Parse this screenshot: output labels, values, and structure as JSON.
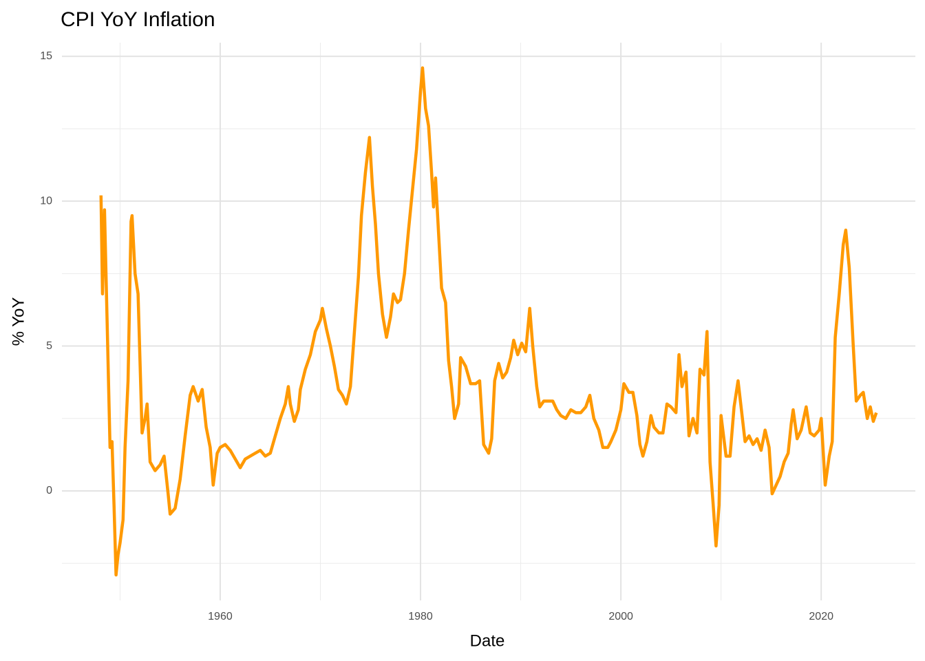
{
  "chart_data": {
    "type": "line",
    "title": "CPI YoY Inflation",
    "x_label": "Date",
    "y_label": "% YoY",
    "x": [
      1948.1,
      1948.25,
      1948.45,
      1948.7,
      1949.0,
      1949.2,
      1949.4,
      1949.6,
      1949.8,
      1950.0,
      1950.3,
      1950.5,
      1950.8,
      1951.1,
      1951.2,
      1951.5,
      1951.8,
      1952.2,
      1952.5,
      1952.7,
      1953.0,
      1953.5,
      1954.0,
      1954.4,
      1954.8,
      1955.0,
      1955.5,
      1956.0,
      1956.5,
      1957.0,
      1957.3,
      1957.8,
      1958.2,
      1958.6,
      1959.0,
      1959.3,
      1959.7,
      1960.0,
      1960.5,
      1961.0,
      1961.5,
      1962.0,
      1962.5,
      1963.0,
      1963.5,
      1964.0,
      1964.5,
      1965.0,
      1965.5,
      1966.0,
      1966.5,
      1966.8,
      1967.0,
      1967.4,
      1967.8,
      1968.0,
      1968.5,
      1969.0,
      1969.5,
      1970.0,
      1970.2,
      1970.6,
      1971.0,
      1971.4,
      1971.8,
      1972.2,
      1972.6,
      1973.0,
      1973.4,
      1973.8,
      1974.1,
      1974.5,
      1974.9,
      1975.2,
      1975.5,
      1975.8,
      1976.2,
      1976.6,
      1977.0,
      1977.3,
      1977.7,
      1978.0,
      1978.4,
      1978.8,
      1979.2,
      1979.6,
      1980.0,
      1980.2,
      1980.5,
      1980.8,
      1981.1,
      1981.3,
      1981.5,
      1981.8,
      1982.1,
      1982.5,
      1982.8,
      1983.1,
      1983.4,
      1983.8,
      1984.0,
      1984.5,
      1985.0,
      1985.5,
      1985.9,
      1986.3,
      1986.8,
      1987.1,
      1987.4,
      1987.8,
      1988.2,
      1988.6,
      1989.0,
      1989.3,
      1989.7,
      1990.1,
      1990.5,
      1990.9,
      1991.2,
      1991.6,
      1991.9,
      1992.3,
      1992.8,
      1993.2,
      1993.6,
      1994.0,
      1994.5,
      1995.0,
      1995.5,
      1996.0,
      1996.5,
      1996.9,
      1997.3,
      1997.8,
      1998.2,
      1998.7,
      1999.0,
      1999.5,
      2000.0,
      2000.3,
      2000.8,
      2001.2,
      2001.6,
      2001.9,
      2002.2,
      2002.6,
      2003.0,
      2003.3,
      2003.8,
      2004.2,
      2004.6,
      2005.0,
      2005.5,
      2005.8,
      2006.1,
      2006.5,
      2006.8,
      2007.2,
      2007.6,
      2007.9,
      2008.3,
      2008.6,
      2008.9,
      2009.2,
      2009.5,
      2009.8,
      2010.0,
      2010.5,
      2010.9,
      2011.3,
      2011.7,
      2012.0,
      2012.4,
      2012.8,
      2013.2,
      2013.6,
      2014.0,
      2014.4,
      2014.8,
      2015.1,
      2015.5,
      2015.9,
      2016.3,
      2016.7,
      2017.0,
      2017.2,
      2017.6,
      2018.0,
      2018.5,
      2018.9,
      2019.3,
      2019.8,
      2020.0,
      2020.4,
      2020.8,
      2021.1,
      2021.4,
      2021.8,
      2022.2,
      2022.45,
      2022.8,
      2023.2,
      2023.5,
      2023.9,
      2024.2,
      2024.6,
      2024.9,
      2025.2,
      2025.5
    ],
    "series": [
      {
        "color": "#ff9900",
        "values": [
          10.2,
          6.8,
          9.7,
          6.0,
          1.5,
          1.7,
          -0.5,
          -2.9,
          -2.2,
          -1.8,
          -1.0,
          1.5,
          3.8,
          9.3,
          9.5,
          7.5,
          6.8,
          2.0,
          2.5,
          3.0,
          1.0,
          0.7,
          0.9,
          1.2,
          -0.1,
          -0.8,
          -0.6,
          0.4,
          1.9,
          3.3,
          3.6,
          3.1,
          3.5,
          2.2,
          1.5,
          0.2,
          1.3,
          1.5,
          1.6,
          1.4,
          1.1,
          0.8,
          1.1,
          1.2,
          1.3,
          1.4,
          1.2,
          1.3,
          1.9,
          2.5,
          3.0,
          3.6,
          3.0,
          2.4,
          2.8,
          3.5,
          4.2,
          4.7,
          5.5,
          5.9,
          6.3,
          5.6,
          5.0,
          4.3,
          3.5,
          3.3,
          3.0,
          3.6,
          5.5,
          7.4,
          9.5,
          11.0,
          12.2,
          10.5,
          9.2,
          7.5,
          6.1,
          5.3,
          6.0,
          6.8,
          6.5,
          6.6,
          7.5,
          9.0,
          10.4,
          11.8,
          13.8,
          14.6,
          13.2,
          12.6,
          11.0,
          9.8,
          10.8,
          8.9,
          7.0,
          6.5,
          4.5,
          3.6,
          2.5,
          3.0,
          4.6,
          4.3,
          3.7,
          3.7,
          3.8,
          1.6,
          1.3,
          1.8,
          3.8,
          4.4,
          3.9,
          4.1,
          4.6,
          5.2,
          4.7,
          5.1,
          4.8,
          6.3,
          5.0,
          3.6,
          2.9,
          3.1,
          3.1,
          3.1,
          2.8,
          2.6,
          2.5,
          2.8,
          2.7,
          2.7,
          2.9,
          3.3,
          2.5,
          2.1,
          1.5,
          1.5,
          1.7,
          2.1,
          2.8,
          3.7,
          3.4,
          3.4,
          2.6,
          1.6,
          1.2,
          1.7,
          2.6,
          2.2,
          2.0,
          2.0,
          3.0,
          2.9,
          2.7,
          4.7,
          3.6,
          4.1,
          1.9,
          2.5,
          2.0,
          4.2,
          4.0,
          5.5,
          1.0,
          -0.4,
          -1.9,
          -0.5,
          2.6,
          1.2,
          1.2,
          2.9,
          3.8,
          2.9,
          1.7,
          1.9,
          1.6,
          1.8,
          1.4,
          2.1,
          1.5,
          -0.1,
          0.2,
          0.5,
          1.0,
          1.3,
          2.3,
          2.8,
          1.8,
          2.1,
          2.9,
          2.0,
          1.9,
          2.1,
          2.5,
          0.2,
          1.2,
          1.7,
          5.3,
          6.8,
          8.5,
          9.0,
          7.7,
          5.0,
          3.1,
          3.3,
          3.4,
          2.5,
          2.9,
          2.4,
          2.7
        ]
      }
    ],
    "xlim": [
      1944.2,
      2029.4
    ],
    "ylim": [
      -3.78,
      15.47
    ],
    "xticks": [
      1960,
      1980,
      2000,
      2020
    ],
    "yticks": [
      0,
      5,
      10,
      15
    ],
    "x_minor_grid": [
      1950,
      1970,
      1990,
      2010
    ],
    "y_minor_grid": [
      -2.5,
      2.5,
      7.5,
      12.5
    ],
    "grid": true
  }
}
